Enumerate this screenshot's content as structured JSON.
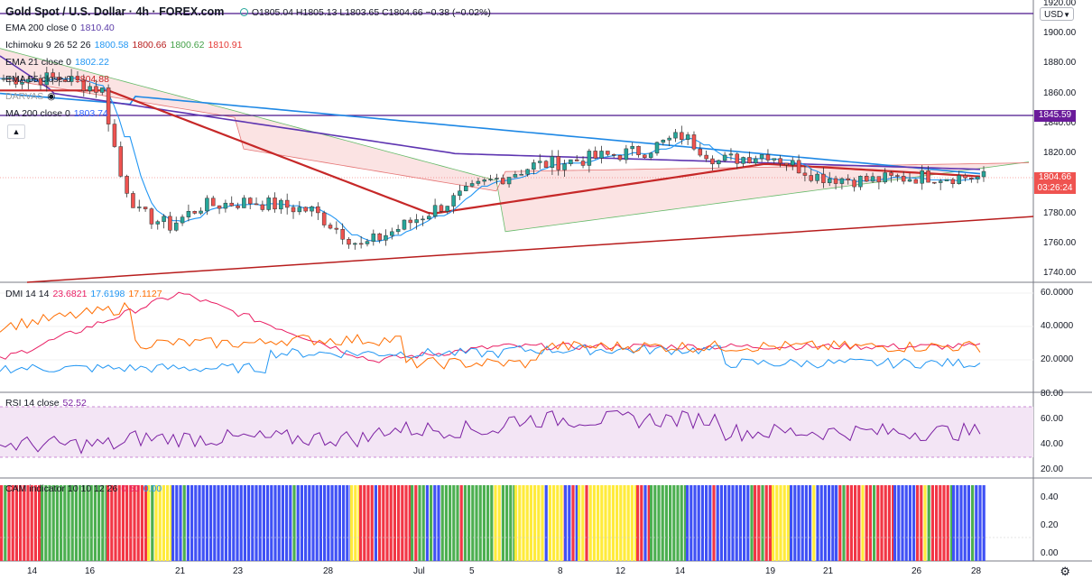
{
  "header": {
    "title": "Gold Spot / U.S. Dollar · 4h · FOREX.com",
    "ohlc": "O1805.04 H1805.13 L1803.65 C1804.66 −0.38 (−0.02%)"
  },
  "indicators": [
    {
      "name": "EMA 200 close 0",
      "values": [
        "1810.40"
      ],
      "colors": [
        "#5b3ca8"
      ]
    },
    {
      "name": "Ichimoku 9 26 52 26",
      "values": [
        "1800.58",
        "1800.66",
        "1800.62",
        "1810.91"
      ],
      "colors": [
        "#2196f3",
        "#b71c1c",
        "#43a047",
        "#e53935"
      ]
    },
    {
      "name": "EMA 21 close 0",
      "values": [
        "1802.22"
      ],
      "colors": [
        "#2196f3"
      ]
    },
    {
      "name": "EMA 55 close 0",
      "values": [
        "1804.88"
      ],
      "colors": [
        "#c62828"
      ]
    },
    {
      "name": "DARVAS",
      "values": [],
      "colors": []
    },
    {
      "name": "MA 200 close 0",
      "values": [
        "1803.74"
      ],
      "colors": [
        "#2962ff"
      ]
    }
  ],
  "currency": "USD",
  "price_axis": [
    "1920.00",
    "1900.00",
    "1880.00",
    "1860.00",
    "1840.00",
    "1820.00",
    "1800.00",
    "1780.00",
    "1760.00",
    "1740.00"
  ],
  "hline_label": "1845.59",
  "current_price": "1804.66",
  "countdown": "03:26:24",
  "dmi": {
    "label": "DMI 14 14",
    "values": [
      "23.6821",
      "17.6198",
      "17.1127"
    ],
    "colors": [
      "#e91e63",
      "#2196f3",
      "#ff6d00"
    ],
    "axis": [
      "60.0000",
      "40.0000",
      "20.0000"
    ]
  },
  "rsi": {
    "label": "RSI 14 close",
    "value": "52.52",
    "color": "#7b1fa2",
    "axis": [
      "80.00",
      "60.00",
      "40.00",
      "20.00"
    ]
  },
  "cam": {
    "label": "CAM indicator 10 10 12 26",
    "values": [
      "0.50",
      "0.00"
    ],
    "colors": [
      "#e91e63",
      "#2196f3"
    ],
    "axis": [
      "0.40",
      "0.20",
      "0.00"
    ]
  },
  "time_axis": [
    "14",
    "16",
    "21",
    "23",
    "28",
    "Jul",
    "5",
    "8",
    "12",
    "14",
    "19",
    "21",
    "26",
    "28"
  ],
  "colors": {
    "up": "#26a69a",
    "down": "#ef5350",
    "cam_red": "#f23645",
    "cam_green": "#4caf50",
    "cam_blue": "#3f51f5",
    "cam_yellow": "#ffeb3b",
    "ichimoku_red": "#f8c6c6",
    "ichimoku_green": "#c8e6c9"
  },
  "icons": [
    "eye-icon",
    "collapse-icon",
    "settings-icon"
  ]
}
